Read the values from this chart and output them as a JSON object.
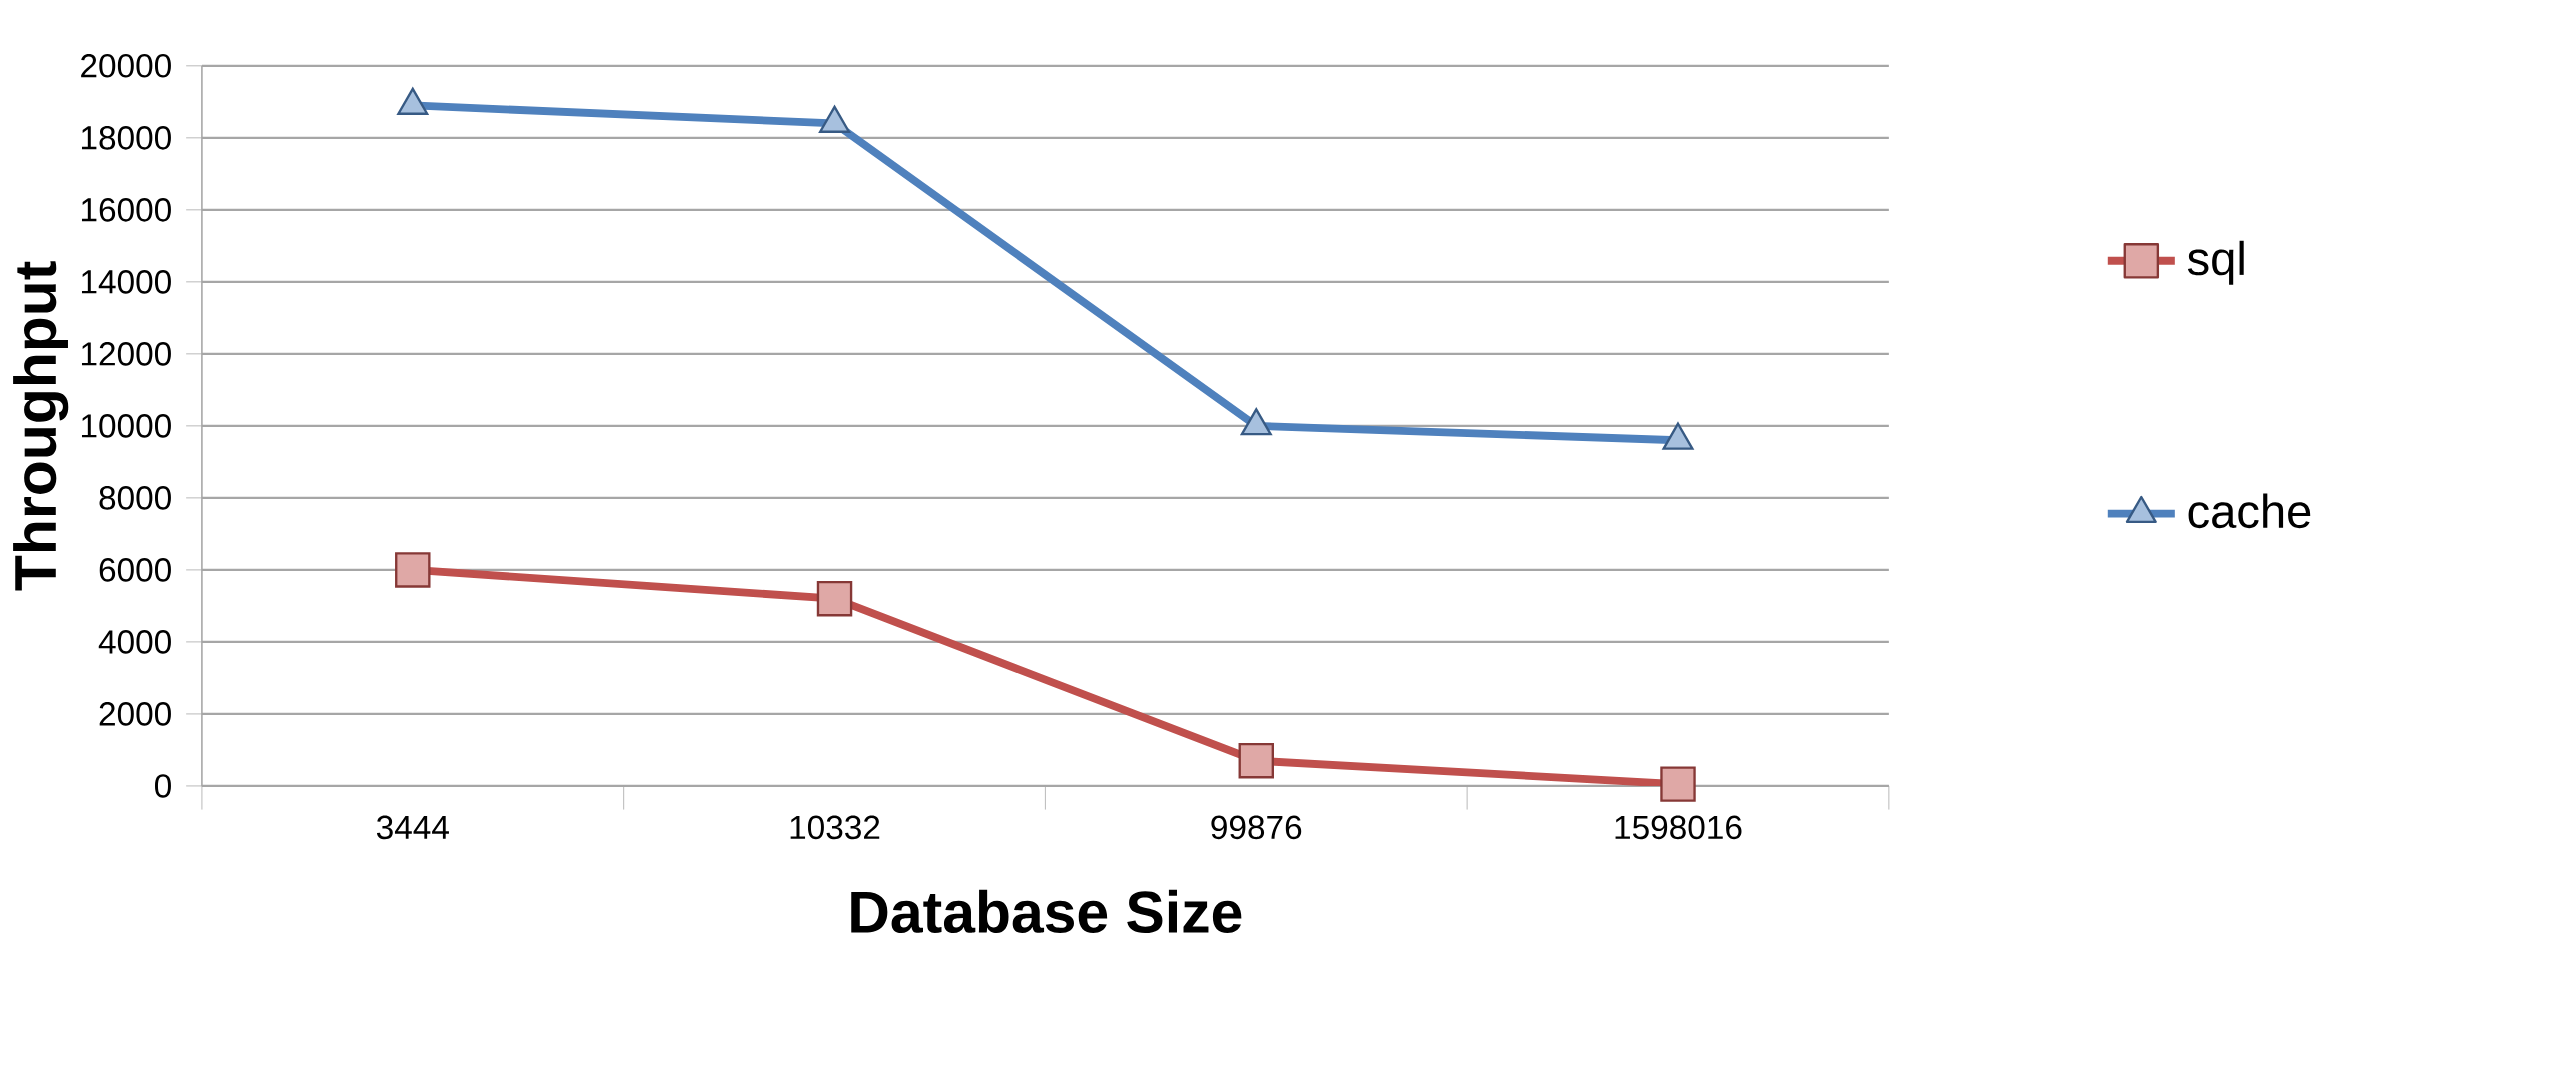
{
  "chart_data": {
    "type": "line",
    "xlabel": "Database Size",
    "ylabel": "Throughput",
    "categories": [
      "3444",
      "10332",
      "99876",
      "1598016"
    ],
    "series": [
      {
        "name": "sql",
        "color": "#c0504d",
        "values": [
          6000,
          5200,
          700,
          50
        ],
        "marker": "square"
      },
      {
        "name": "cache",
        "color": "#4f81bd",
        "values": [
          18900,
          18400,
          10000,
          9600
        ],
        "marker": "triangle"
      }
    ],
    "ylim": [
      0,
      20000
    ],
    "yticks": [
      0,
      2000,
      4000,
      6000,
      8000,
      10000,
      12000,
      14000,
      16000,
      18000,
      20000
    ],
    "grid": "y",
    "legend": "right",
    "line_style": "solid"
  }
}
